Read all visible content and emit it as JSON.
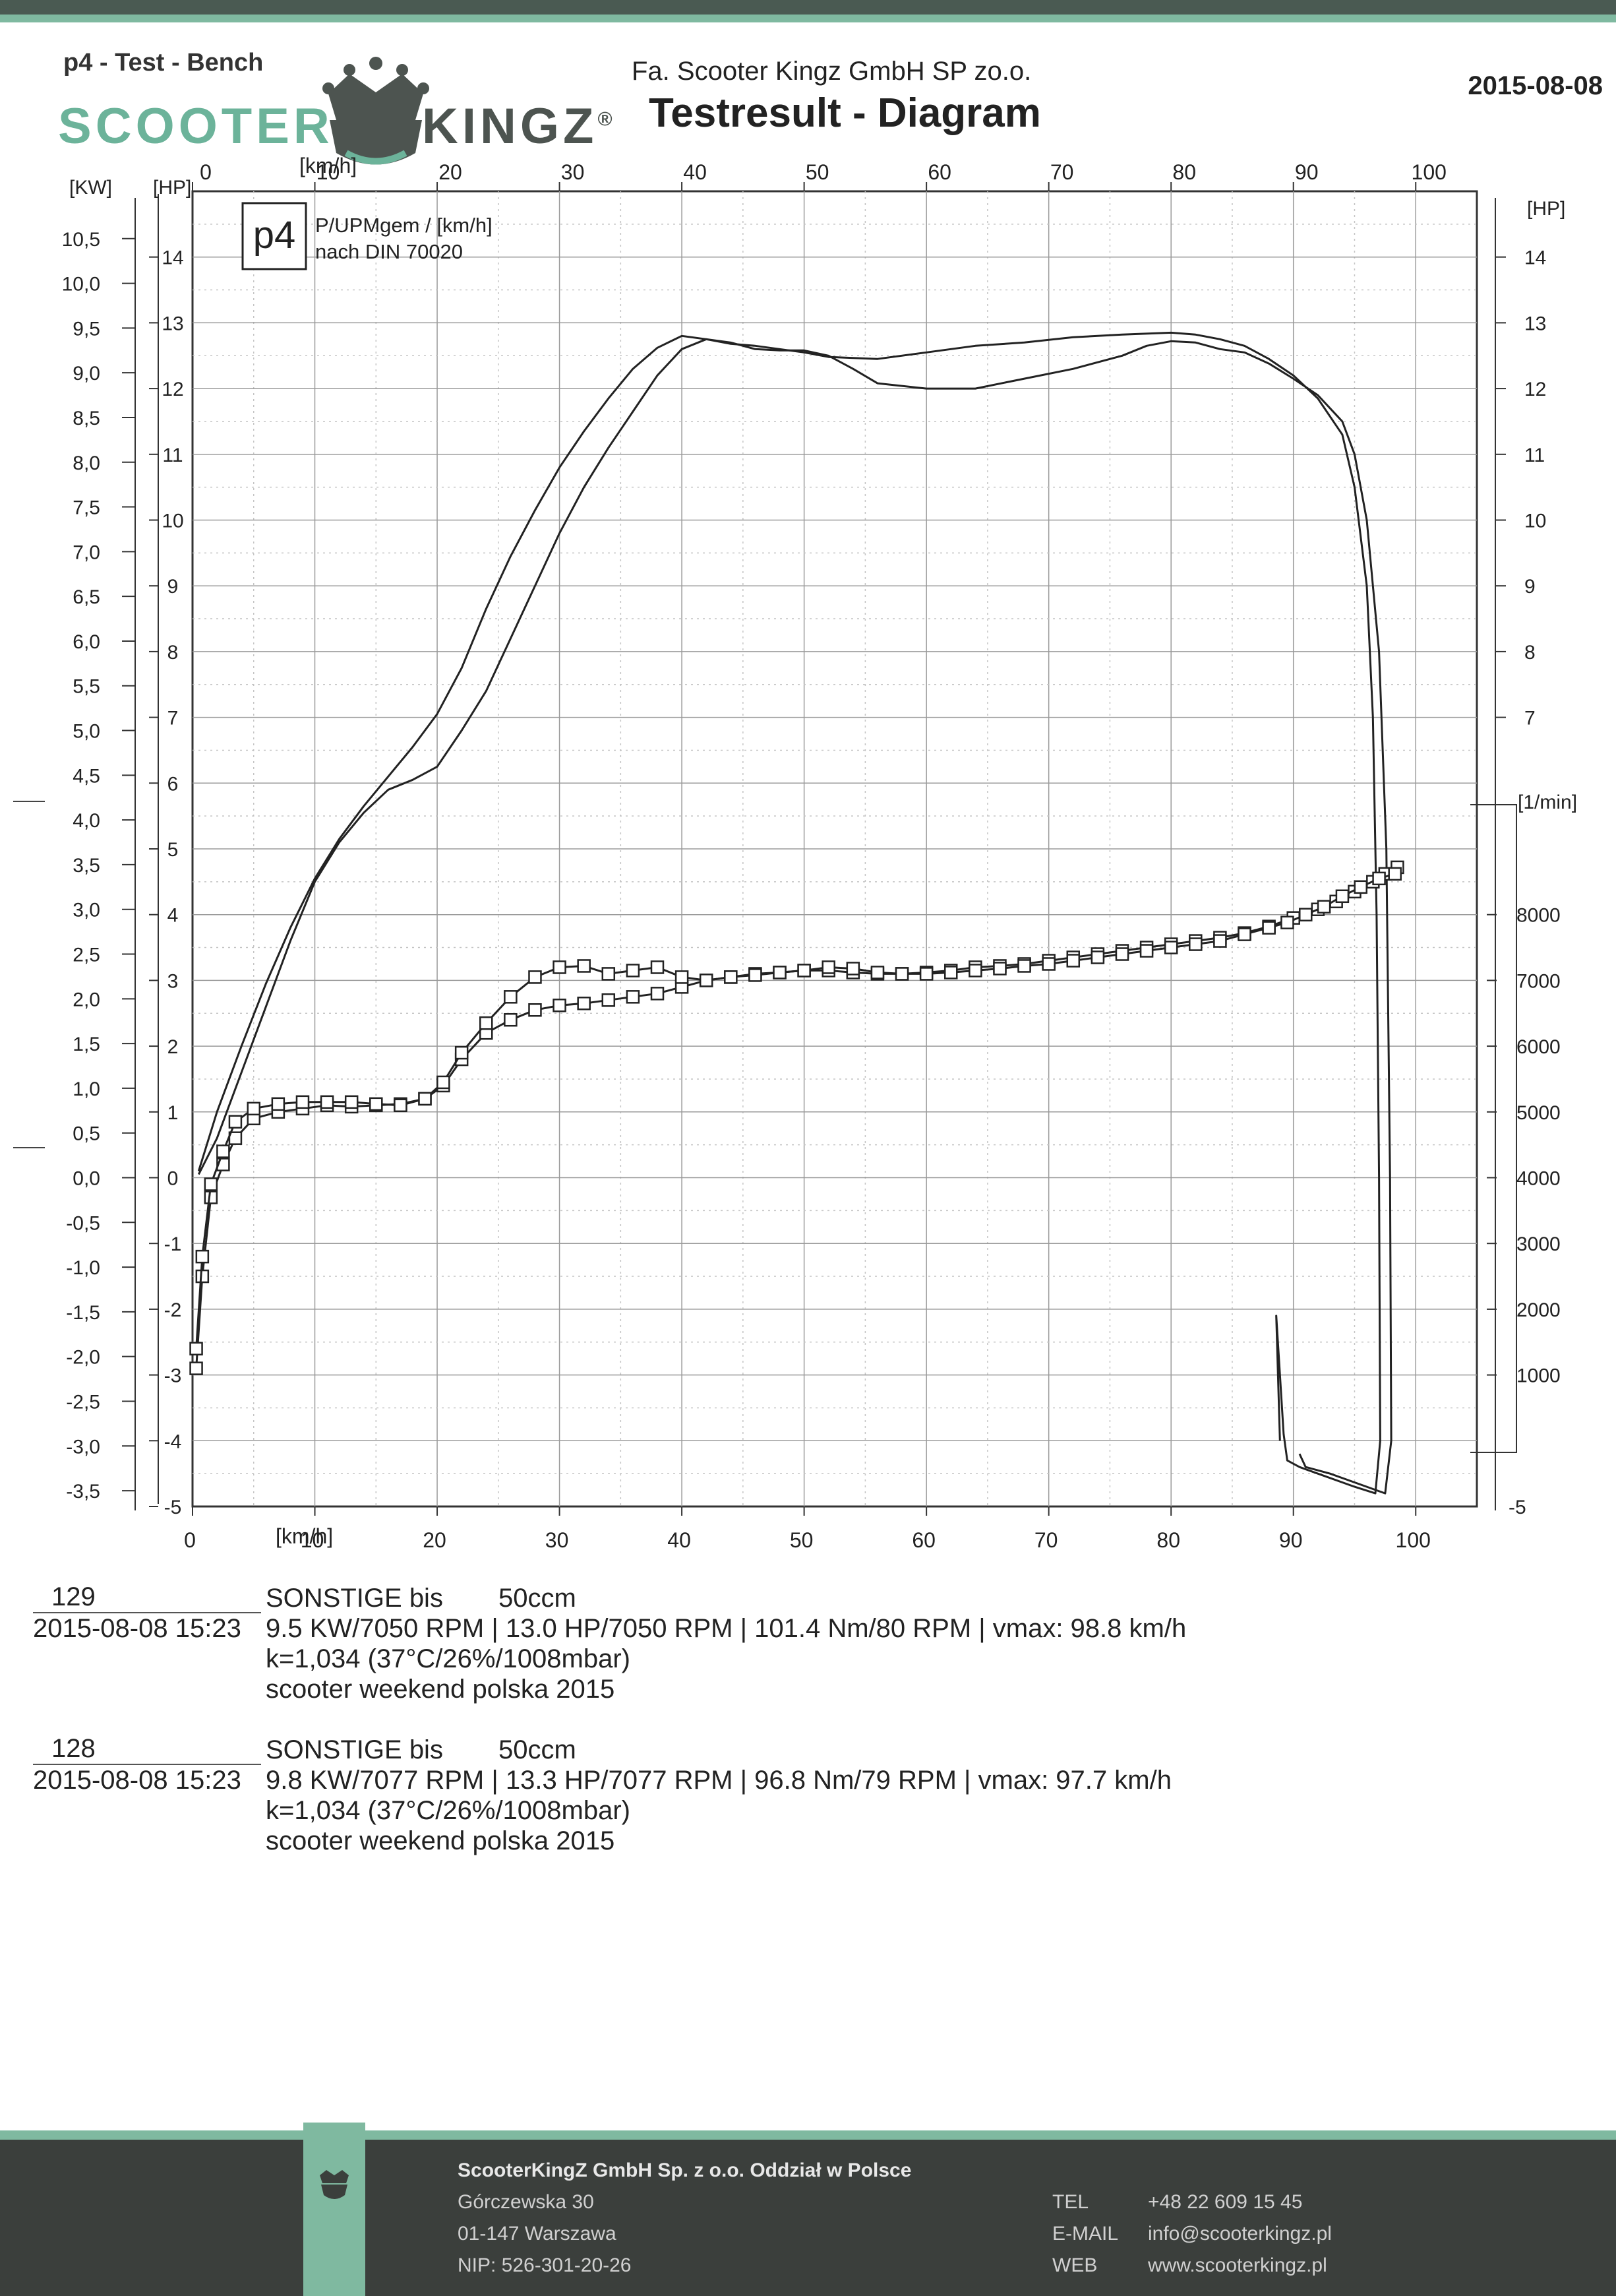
{
  "header": {
    "bench": "p4 - Test - Bench",
    "logo_left": "SCOOTER",
    "logo_right": "KINGZ",
    "logo_registered": "®",
    "company": "Fa. Scooter Kingz GmbH SP zo.o.",
    "title": "Testresult - Diagram",
    "date": "2015-08-08"
  },
  "colors": {
    "brand_green": "#7fb9a0",
    "dark": "#3b3f3c",
    "grid": "#9a9a9a",
    "curve": "#222222"
  },
  "chart_data": {
    "type": "line",
    "title": "P/UPMgem / [km/h]",
    "subtitle": "nach DIN 70020",
    "logo_text": "p4",
    "x_label": "[km/h]",
    "x_ticks": [
      0,
      10,
      20,
      30,
      40,
      50,
      60,
      70,
      80,
      90,
      100
    ],
    "xlim": [
      0,
      105
    ],
    "kw_label": "[KW]",
    "kw_ticks": [
      "10,5",
      "10,0",
      "9,5",
      "9,0",
      "8,5",
      "8,0",
      "7,5",
      "7,0",
      "6,5",
      "6,0",
      "5,5",
      "5,0",
      "4,5",
      "4,0",
      "3,5",
      "3,0",
      "2,5",
      "2,0",
      "1,5",
      "1,0",
      "0,5",
      "0,0",
      "-0,5",
      "-1,0",
      "-1,5",
      "-2,0",
      "-2,5",
      "-3,0",
      "-3,5"
    ],
    "hp_label": "[HP]",
    "hp_left_ticks": [
      14,
      13,
      12,
      11,
      10,
      9,
      8,
      7,
      6,
      5,
      4,
      3,
      2,
      1,
      0,
      -1,
      -2,
      -3,
      -4,
      -5
    ],
    "hp_right_ticks": [
      14,
      13,
      12,
      11,
      10,
      9,
      8,
      7
    ],
    "hp_right_bottom": -5,
    "ylim_hp": [
      -5,
      15
    ],
    "rpm_label": "[1/min]",
    "rpm_ticks": [
      8000,
      7000,
      6000,
      5000,
      4000,
      3000,
      2000,
      1000
    ],
    "series": [
      {
        "name": "129",
        "marker": "none",
        "points": [
          [
            0.5,
            0.05
          ],
          [
            2,
            0.6
          ],
          [
            4,
            1.6
          ],
          [
            6,
            2.6
          ],
          [
            8,
            3.6
          ],
          [
            10,
            4.5
          ],
          [
            12,
            5.1
          ],
          [
            14,
            5.55
          ],
          [
            16,
            5.9
          ],
          [
            18,
            6.05
          ],
          [
            20,
            6.25
          ],
          [
            22,
            6.8
          ],
          [
            24,
            7.4
          ],
          [
            26,
            8.2
          ],
          [
            28,
            9.0
          ],
          [
            30,
            9.8
          ],
          [
            32,
            10.5
          ],
          [
            34,
            11.1
          ],
          [
            36,
            11.65
          ],
          [
            38,
            12.2
          ],
          [
            40,
            12.6
          ],
          [
            42,
            12.75
          ],
          [
            44,
            12.7
          ],
          [
            46,
            12.6
          ],
          [
            48,
            12.58
          ],
          [
            50,
            12.58
          ],
          [
            52,
            12.5
          ],
          [
            54,
            12.3
          ],
          [
            56,
            12.08
          ],
          [
            60,
            12.0
          ],
          [
            64,
            12.0
          ],
          [
            68,
            12.15
          ],
          [
            72,
            12.3
          ],
          [
            76,
            12.5
          ],
          [
            78,
            12.65
          ],
          [
            80,
            12.72
          ],
          [
            82,
            12.7
          ],
          [
            84,
            12.6
          ],
          [
            86,
            12.55
          ],
          [
            88,
            12.38
          ],
          [
            90,
            12.15
          ],
          [
            92,
            11.9
          ],
          [
            94,
            11.5
          ],
          [
            95,
            11.0
          ],
          [
            96,
            10.0
          ],
          [
            97,
            8.0
          ],
          [
            97.6,
            5.0
          ],
          [
            97.9,
            0.0
          ],
          [
            98.0,
            -4.0
          ],
          [
            97.5,
            -4.8
          ],
          [
            96,
            -4.7
          ],
          [
            93,
            -4.5
          ],
          [
            91,
            -4.4
          ],
          [
            90.5,
            -4.2
          ]
        ]
      },
      {
        "name": "128",
        "marker": "none",
        "points": [
          [
            0.5,
            0.1
          ],
          [
            2,
            1.0
          ],
          [
            4,
            2.0
          ],
          [
            6,
            2.95
          ],
          [
            8,
            3.8
          ],
          [
            10,
            4.55
          ],
          [
            12,
            5.15
          ],
          [
            14,
            5.65
          ],
          [
            16,
            6.1
          ],
          [
            18,
            6.55
          ],
          [
            20,
            7.05
          ],
          [
            22,
            7.75
          ],
          [
            24,
            8.65
          ],
          [
            26,
            9.45
          ],
          [
            28,
            10.15
          ],
          [
            30,
            10.8
          ],
          [
            32,
            11.35
          ],
          [
            34,
            11.85
          ],
          [
            36,
            12.3
          ],
          [
            38,
            12.62
          ],
          [
            40,
            12.8
          ],
          [
            42,
            12.75
          ],
          [
            44,
            12.68
          ],
          [
            46,
            12.65
          ],
          [
            48,
            12.6
          ],
          [
            50,
            12.55
          ],
          [
            52,
            12.48
          ],
          [
            56,
            12.45
          ],
          [
            60,
            12.55
          ],
          [
            64,
            12.65
          ],
          [
            68,
            12.7
          ],
          [
            72,
            12.78
          ],
          [
            76,
            12.82
          ],
          [
            80,
            12.85
          ],
          [
            82,
            12.82
          ],
          [
            84,
            12.75
          ],
          [
            86,
            12.65
          ],
          [
            88,
            12.45
          ],
          [
            90,
            12.2
          ],
          [
            92,
            11.85
          ],
          [
            94,
            11.3
          ],
          [
            95,
            10.5
          ],
          [
            96,
            9.0
          ],
          [
            96.5,
            7.0
          ],
          [
            96.8,
            4.0
          ],
          [
            97.0,
            0.0
          ],
          [
            97.1,
            -4.0
          ],
          [
            96.7,
            -4.8
          ],
          [
            95,
            -4.7
          ],
          [
            92,
            -4.5
          ],
          [
            90.5,
            -4.4
          ],
          [
            89.5,
            -4.3
          ],
          [
            89.2,
            -3.9
          ],
          [
            88.6,
            -2.1
          ],
          [
            88.9,
            -4.0
          ]
        ]
      },
      {
        "name": "129 RPM",
        "marker": "square",
        "points": [
          [
            0.3,
            -2.9
          ],
          [
            0.8,
            -1.5
          ],
          [
            1.5,
            -0.3
          ],
          [
            2.5,
            0.2
          ],
          [
            3.5,
            0.6
          ],
          [
            5,
            0.9
          ],
          [
            7,
            1.0
          ],
          [
            9,
            1.05
          ],
          [
            11,
            1.1
          ],
          [
            13,
            1.08
          ],
          [
            15,
            1.1
          ],
          [
            17,
            1.12
          ],
          [
            19,
            1.2
          ],
          [
            20.5,
            1.4
          ],
          [
            22,
            1.8
          ],
          [
            24,
            2.2
          ],
          [
            26,
            2.4
          ],
          [
            28,
            2.55
          ],
          [
            30,
            2.62
          ],
          [
            32,
            2.65
          ],
          [
            34,
            2.7
          ],
          [
            36,
            2.75
          ],
          [
            38,
            2.8
          ],
          [
            40,
            2.9
          ],
          [
            42,
            3.0
          ],
          [
            44,
            3.05
          ],
          [
            46,
            3.1
          ],
          [
            48,
            3.12
          ],
          [
            50,
            3.15
          ],
          [
            52,
            3.15
          ],
          [
            54,
            3.12
          ],
          [
            56,
            3.1
          ],
          [
            58,
            3.1
          ],
          [
            60,
            3.12
          ],
          [
            62,
            3.15
          ],
          [
            64,
            3.2
          ],
          [
            66,
            3.22
          ],
          [
            68,
            3.25
          ],
          [
            70,
            3.3
          ],
          [
            72,
            3.35
          ],
          [
            74,
            3.4
          ],
          [
            76,
            3.45
          ],
          [
            78,
            3.5
          ],
          [
            80,
            3.55
          ],
          [
            82,
            3.6
          ],
          [
            84,
            3.65
          ],
          [
            86,
            3.72
          ],
          [
            88,
            3.82
          ],
          [
            90,
            3.95
          ],
          [
            92,
            4.08
          ],
          [
            93.5,
            4.2
          ],
          [
            95,
            4.35
          ],
          [
            96.5,
            4.5
          ],
          [
            97.5,
            4.62
          ],
          [
            98.5,
            4.72
          ]
        ]
      },
      {
        "name": "128 RPM",
        "marker": "square",
        "points": [
          [
            0.3,
            -2.6
          ],
          [
            0.8,
            -1.2
          ],
          [
            1.5,
            -0.1
          ],
          [
            2.5,
            0.4
          ],
          [
            3.5,
            0.85
          ],
          [
            5,
            1.05
          ],
          [
            7,
            1.12
          ],
          [
            9,
            1.15
          ],
          [
            11,
            1.15
          ],
          [
            13,
            1.15
          ],
          [
            15,
            1.12
          ],
          [
            17,
            1.1
          ],
          [
            19,
            1.2
          ],
          [
            20.5,
            1.45
          ],
          [
            22,
            1.9
          ],
          [
            24,
            2.35
          ],
          [
            26,
            2.75
          ],
          [
            28,
            3.05
          ],
          [
            30,
            3.2
          ],
          [
            32,
            3.22
          ],
          [
            34,
            3.1
          ],
          [
            36,
            3.15
          ],
          [
            38,
            3.2
          ],
          [
            40,
            3.05
          ],
          [
            42,
            3.0
          ],
          [
            44,
            3.05
          ],
          [
            46,
            3.08
          ],
          [
            48,
            3.12
          ],
          [
            50,
            3.15
          ],
          [
            52,
            3.2
          ],
          [
            54,
            3.18
          ],
          [
            56,
            3.12
          ],
          [
            58,
            3.1
          ],
          [
            60,
            3.1
          ],
          [
            62,
            3.12
          ],
          [
            64,
            3.15
          ],
          [
            66,
            3.18
          ],
          [
            68,
            3.22
          ],
          [
            70,
            3.25
          ],
          [
            72,
            3.3
          ],
          [
            74,
            3.35
          ],
          [
            76,
            3.4
          ],
          [
            78,
            3.45
          ],
          [
            80,
            3.5
          ],
          [
            82,
            3.55
          ],
          [
            84,
            3.6
          ],
          [
            86,
            3.7
          ],
          [
            88,
            3.8
          ],
          [
            89.5,
            3.88
          ],
          [
            91,
            4.0
          ],
          [
            92.5,
            4.12
          ],
          [
            94,
            4.28
          ],
          [
            95.5,
            4.42
          ],
          [
            97,
            4.55
          ],
          [
            98.3,
            4.62
          ]
        ]
      }
    ]
  },
  "runs": [
    {
      "number": "129",
      "datetime": "2015-08-08  15:23",
      "category": "SONSTIGE bis",
      "displacement": "50ccm",
      "results": "9.5 KW/7050 RPM  |  13.0 HP/7050 RPM  |  101.4 Nm/80 RPM |  vmax: 98.8 km/h",
      "correction": "k=1,034 (37°C/26%/1008mbar)",
      "event": "scooter weekend polska 2015"
    },
    {
      "number": "128",
      "datetime": "2015-08-08  15:23",
      "category": "SONSTIGE bis",
      "displacement": "50ccm",
      "results": "9.8 KW/7077 RPM  |  13.3 HP/7077 RPM  |  96.8 Nm/79 RPM |  vmax: 97.7 km/h",
      "correction": "k=1,034 (37°C/26%/1008mbar)",
      "event": "scooter weekend polska 2015"
    }
  ],
  "footer": {
    "company": "ScooterKingZ GmbH Sp. z o.o. Oddział w Polsce",
    "address": [
      "Górczewska 30",
      "01-147 Warszawa",
      "NIP: 526-301-20-26"
    ],
    "contacts": [
      {
        "label": "TEL",
        "value": "+48 22 609 15 45"
      },
      {
        "label": "E-MAIL",
        "value": "info@scooterkingz.pl"
      },
      {
        "label": "WEB",
        "value": "www.scooterkingz.pl"
      }
    ]
  }
}
